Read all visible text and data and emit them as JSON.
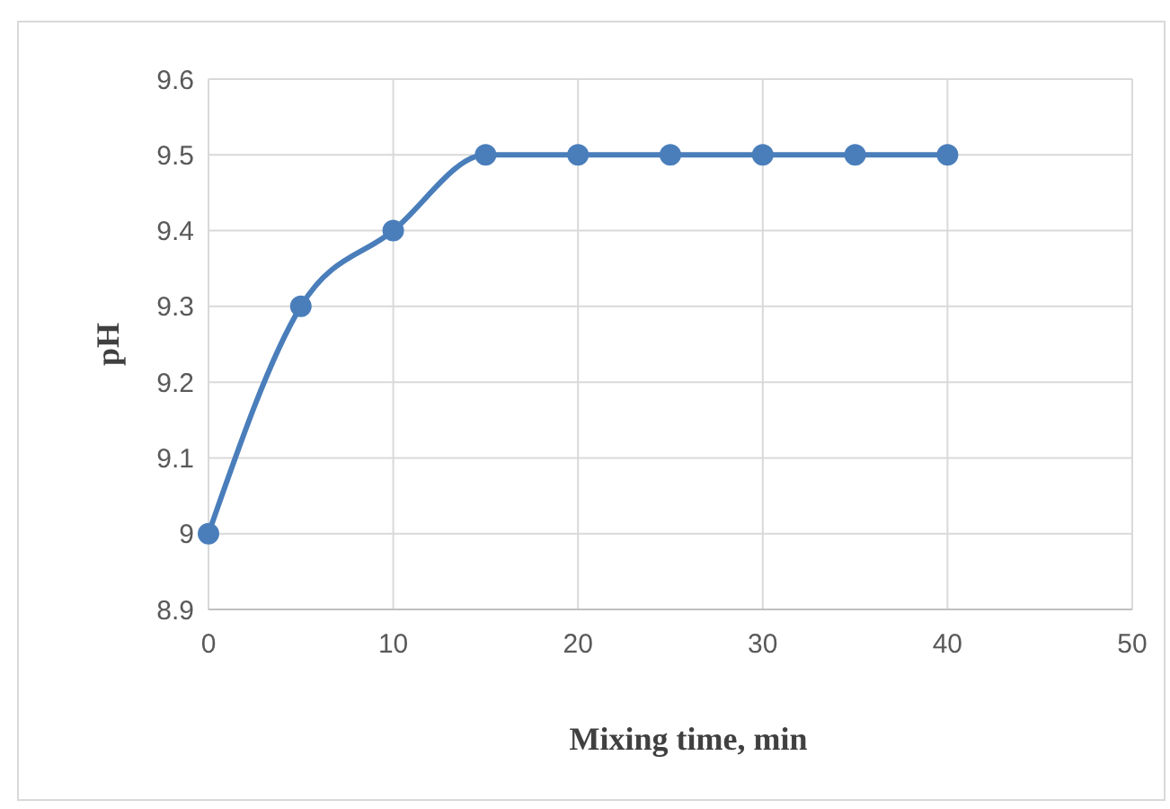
{
  "chart_data": {
    "type": "line",
    "xlabel": "Mixing time, min",
    "ylabel": "pH",
    "x": [
      0,
      5,
      10,
      15,
      20,
      25,
      30,
      35,
      40
    ],
    "series": [
      {
        "color": "#4a7ebb",
        "values": [
          9.0,
          9.3,
          9.4,
          9.5,
          9.5,
          9.5,
          9.5,
          9.5,
          9.5
        ]
      }
    ],
    "xlim": [
      0,
      50
    ],
    "xticks": [
      0,
      10,
      20,
      30,
      40,
      50
    ],
    "ylim": [
      8.9,
      9.6
    ],
    "yticks": [
      8.9,
      9.0,
      9.1,
      9.2,
      9.3,
      9.4,
      9.5,
      9.6
    ],
    "grid": true,
    "marker": "circle",
    "line_style": "solid"
  }
}
